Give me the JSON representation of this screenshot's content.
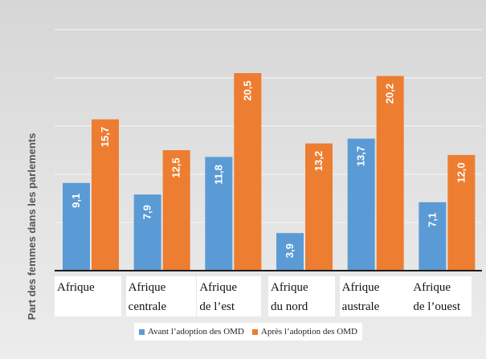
{
  "chart_data": {
    "type": "bar",
    "ylabel": "Part des femmes  dans les parlements",
    "categories": [
      [
        "Afrique"
      ],
      [
        "Afrique",
        "centrale"
      ],
      [
        "Afrique",
        "de l’est"
      ],
      [
        "Afrique",
        "du nord"
      ],
      [
        "Afrique",
        "australe"
      ],
      [
        "Afrique",
        "de l’ouest"
      ]
    ],
    "series": [
      {
        "name": "Avant l’adoption des OMD",
        "color": "#5b9bd5",
        "values": [
          9.1,
          7.9,
          11.8,
          3.9,
          13.7,
          7.1
        ],
        "labels": [
          "9,1",
          "7,9",
          "11,8",
          "3,9",
          "13,7",
          "7,1"
        ]
      },
      {
        "name": "Après l’adoption des OMD",
        "color": "#ed7d31",
        "values": [
          15.7,
          12.5,
          20.5,
          13.2,
          20.2,
          12.0
        ],
        "labels": [
          "15,7",
          "12,5",
          "20,5",
          "13,2",
          "20,2",
          "12,0"
        ]
      }
    ],
    "ylim": [
      0,
      25
    ],
    "grid": true,
    "legend_position": "bottom"
  }
}
